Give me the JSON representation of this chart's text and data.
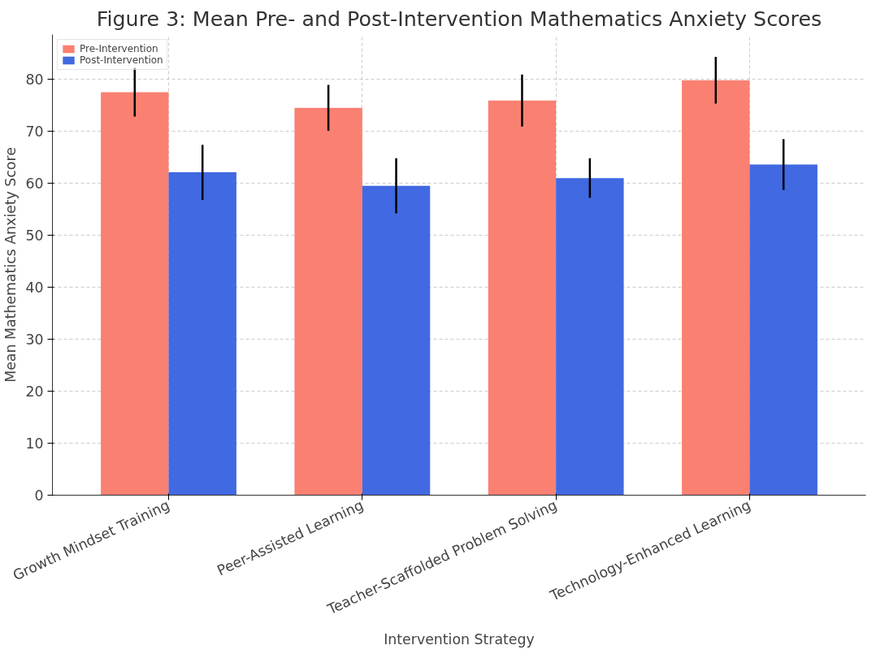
{
  "chart_data": {
    "type": "bar",
    "title": "Figure 3: Mean Pre- and Post-Intervention Mathematics Anxiety Scores",
    "xlabel": "Intervention Strategy",
    "ylabel": "Mean Mathematics Anxiety Score",
    "categories": [
      "Growth Mindset Training",
      "Peer-Assisted Learning",
      "Teacher-Scaffolded Problem Solving",
      "Technology-Enhanced Learning"
    ],
    "series": [
      {
        "name": "Pre-Intervention",
        "color": "#fa8072",
        "values": [
          77.5,
          74.5,
          75.9,
          79.8
        ],
        "errors": [
          4.7,
          4.4,
          5.0,
          4.5
        ]
      },
      {
        "name": "Post-Intervention",
        "color": "#4169e1",
        "values": [
          62.1,
          59.5,
          61.0,
          63.6
        ],
        "errors": [
          5.3,
          5.3,
          3.8,
          4.9
        ]
      }
    ],
    "ylim": [
      0,
      88.6
    ],
    "yticks": [
      0,
      10,
      20,
      30,
      40,
      50,
      60,
      70,
      80
    ],
    "grid": true,
    "legend": "top left"
  }
}
